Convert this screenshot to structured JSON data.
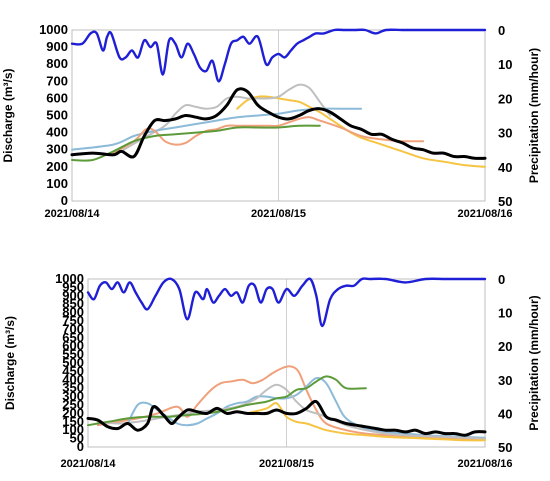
{
  "chart_data": [
    {
      "type": "line",
      "ylabel": "Discharge (m³/s)",
      "y2label": "Precipitation (mm/hour)",
      "ylim": [
        0,
        1000
      ],
      "y2lim": [
        0,
        50
      ],
      "y2_inverted": true,
      "yticks": [
        "0",
        "100",
        "200",
        "300",
        "400",
        "500",
        "600",
        "700",
        "800",
        "900",
        "1000"
      ],
      "y2ticks": [
        "0",
        "10",
        "20",
        "30",
        "40",
        "50"
      ],
      "xlim": [
        0,
        2
      ],
      "xticks": [
        "2021/08/14",
        "2021/08/15",
        "2021/08/16"
      ],
      "grid": "vertical line at 2021/08/15",
      "precipitation": {
        "color": "#1f1fd6",
        "x": [
          0,
          0.05,
          0.09,
          0.12,
          0.15,
          0.17,
          0.19,
          0.23,
          0.26,
          0.29,
          0.32,
          0.35,
          0.38,
          0.41,
          0.44,
          0.47,
          0.5,
          0.53,
          0.56,
          0.59,
          0.62,
          0.65,
          0.68,
          0.71,
          0.74,
          0.77,
          0.8,
          0.83,
          0.86,
          0.9,
          0.94,
          0.97,
          1.0,
          1.03,
          1.06,
          1.09,
          1.12,
          1.15,
          1.18,
          1.22,
          1.27,
          1.32,
          1.37,
          1.42,
          1.47,
          1.52,
          1.6,
          1.7,
          1.8,
          1.9,
          2.0
        ],
        "y": [
          4,
          4,
          1,
          1,
          6,
          2,
          1,
          8,
          8,
          6,
          8,
          3,
          5,
          4,
          13,
          3,
          4,
          8,
          4,
          7,
          11,
          12,
          9,
          15,
          10,
          4,
          3,
          2,
          4,
          2,
          10,
          8,
          7,
          8,
          6,
          4,
          3,
          2,
          1,
          1,
          0,
          0,
          0,
          0,
          1,
          0,
          0,
          0,
          0,
          0,
          0
        ]
      },
      "series": [
        {
          "color": "#000000",
          "x": [
            0,
            0.1,
            0.2,
            0.24,
            0.3,
            0.35,
            0.4,
            0.45,
            0.5,
            0.55,
            0.6,
            0.65,
            0.7,
            0.75,
            0.8,
            0.85,
            0.9,
            0.95,
            1.0,
            1.05,
            1.1,
            1.15,
            1.2,
            1.25,
            1.3,
            1.35,
            1.4,
            1.45,
            1.5,
            1.55,
            1.6,
            1.65,
            1.7,
            1.75,
            1.8,
            1.85,
            1.9,
            1.95,
            2.0
          ],
          "y": [
            270,
            280,
            270,
            290,
            260,
            380,
            470,
            470,
            480,
            500,
            490,
            480,
            500,
            560,
            650,
            640,
            560,
            520,
            490,
            480,
            500,
            530,
            540,
            520,
            480,
            440,
            420,
            390,
            390,
            360,
            340,
            310,
            300,
            280,
            280,
            260,
            260,
            250,
            250
          ]
        },
        {
          "color": "#f6c443",
          "x": [
            0.8,
            0.85,
            0.9,
            0.95,
            1.0,
            1.05,
            1.1,
            1.15,
            1.2,
            1.25,
            1.3,
            1.35,
            1.4,
            1.5,
            1.6,
            1.7,
            1.8,
            1.9,
            2.0
          ],
          "y": [
            540,
            590,
            610,
            610,
            600,
            590,
            580,
            550,
            520,
            480,
            440,
            400,
            370,
            330,
            290,
            250,
            230,
            210,
            200
          ]
        },
        {
          "color": "#bfbfbf",
          "x": [
            0.25,
            0.35,
            0.45,
            0.5,
            0.55,
            0.6,
            0.65,
            0.7,
            0.75,
            0.8,
            0.85,
            0.9,
            0.95,
            1.0,
            1.05,
            1.1,
            1.15,
            1.2,
            1.25
          ],
          "y": [
            300,
            370,
            440,
            510,
            560,
            550,
            540,
            550,
            600,
            610,
            600,
            600,
            600,
            610,
            650,
            680,
            660,
            580,
            500
          ]
        },
        {
          "color": "#8cbad9",
          "x": [
            0,
            0.2,
            0.3,
            0.4,
            0.5,
            0.6,
            0.7,
            0.8,
            0.9,
            1.0,
            1.1,
            1.2,
            1.3,
            1.4
          ],
          "y": [
            300,
            330,
            380,
            410,
            430,
            450,
            470,
            490,
            500,
            510,
            530,
            540,
            540,
            540
          ]
        },
        {
          "color": "#f0a07a",
          "x": [
            0.2,
            0.3,
            0.36,
            0.4,
            0.45,
            0.5,
            0.55,
            0.6,
            0.65,
            0.7,
            0.75,
            0.8,
            0.85,
            0.9,
            0.95,
            1.0,
            1.05,
            1.1,
            1.15,
            1.2,
            1.3,
            1.4,
            1.5,
            1.6,
            1.7
          ],
          "y": [
            280,
            350,
            420,
            410,
            350,
            330,
            340,
            380,
            410,
            420,
            440,
            440,
            440,
            440,
            440,
            440,
            460,
            480,
            490,
            470,
            430,
            380,
            360,
            350,
            350
          ]
        },
        {
          "color": "#5d9b3a",
          "x": [
            0,
            0.1,
            0.2,
            0.3,
            0.4,
            0.5,
            0.6,
            0.7,
            0.8,
            0.9,
            1.0,
            1.1,
            1.2
          ],
          "y": [
            240,
            240,
            290,
            350,
            380,
            390,
            400,
            410,
            430,
            430,
            430,
            440,
            440
          ]
        }
      ]
    },
    {
      "type": "line",
      "ylabel": "Discharge (m³/s)",
      "y2label": "Precipitation (mm/hour)",
      "ylim": [
        0,
        1000
      ],
      "y2lim": [
        0,
        50
      ],
      "y2_inverted": true,
      "yticks": [
        "0",
        "50",
        "100",
        "150",
        "200",
        "250",
        "300",
        "350",
        "400",
        "450",
        "500",
        "550",
        "600",
        "650",
        "700",
        "750",
        "800",
        "850",
        "900",
        "950",
        "1000"
      ],
      "y2ticks": [
        "0",
        "10",
        "20",
        "30",
        "40",
        "50"
      ],
      "xlim": [
        0,
        2
      ],
      "xticks": [
        "2021/08/14",
        "2021/08/15",
        "2021/08/16"
      ],
      "grid": "vertical line at 2021/08/15",
      "precipitation": {
        "color": "#1f1fd6",
        "x": [
          0,
          0.03,
          0.06,
          0.09,
          0.12,
          0.15,
          0.18,
          0.21,
          0.24,
          0.27,
          0.3,
          0.34,
          0.38,
          0.42,
          0.46,
          0.5,
          0.54,
          0.58,
          0.6,
          0.63,
          0.66,
          0.69,
          0.72,
          0.75,
          0.78,
          0.81,
          0.84,
          0.87,
          0.9,
          0.93,
          0.96,
          1.0,
          1.04,
          1.08,
          1.12,
          1.15,
          1.18,
          1.22,
          1.26,
          1.3,
          1.34,
          1.38,
          1.42,
          1.5,
          1.6,
          1.7,
          1.8,
          1.9,
          2.0
        ],
        "y": [
          4,
          6,
          2,
          1,
          3,
          1,
          4,
          1,
          4,
          7,
          9,
          5,
          1,
          0,
          3,
          12,
          4,
          6,
          3,
          7,
          5,
          3,
          5,
          4,
          7,
          2,
          2,
          7,
          3,
          3,
          7,
          3,
          5,
          2,
          0,
          5,
          14,
          6,
          3,
          2,
          2,
          0,
          0,
          0,
          1,
          0,
          0,
          0,
          0
        ]
      },
      "series": [
        {
          "color": "#000000",
          "x": [
            0,
            0.05,
            0.1,
            0.15,
            0.2,
            0.25,
            0.3,
            0.33,
            0.38,
            0.42,
            0.45,
            0.5,
            0.55,
            0.6,
            0.65,
            0.7,
            0.75,
            0.8,
            0.85,
            0.9,
            0.95,
            1.0,
            1.05,
            1.1,
            1.15,
            1.2,
            1.25,
            1.3,
            1.35,
            1.4,
            1.45,
            1.5,
            1.55,
            1.6,
            1.65,
            1.7,
            1.75,
            1.8,
            1.85,
            1.9,
            1.95,
            2.0
          ],
          "y": [
            170,
            160,
            120,
            110,
            140,
            100,
            140,
            240,
            190,
            140,
            170,
            220,
            210,
            200,
            230,
            200,
            210,
            200,
            200,
            200,
            220,
            200,
            200,
            230,
            270,
            180,
            160,
            140,
            130,
            120,
            110,
            100,
            100,
            90,
            100,
            80,
            90,
            80,
            80,
            70,
            90,
            90
          ]
        },
        {
          "color": "#f0a07a",
          "x": [
            0.05,
            0.15,
            0.25,
            0.35,
            0.45,
            0.5,
            0.55,
            0.62,
            0.67,
            0.72,
            0.78,
            0.83,
            0.88,
            0.93,
            0.98,
            1.02,
            1.06,
            1.1,
            1.15,
            1.2,
            1.3,
            1.4,
            1.5,
            1.6,
            1.7,
            1.8,
            1.9,
            2.0
          ],
          "y": [
            130,
            150,
            170,
            200,
            240,
            180,
            250,
            340,
            380,
            390,
            400,
            380,
            400,
            440,
            470,
            480,
            450,
            340,
            220,
            140,
            100,
            80,
            70,
            65,
            60,
            55,
            50,
            50
          ]
        },
        {
          "color": "#8cbad9",
          "x": [
            0.2,
            0.25,
            0.3,
            0.35,
            0.4,
            0.45,
            0.5,
            0.55,
            0.6,
            0.65,
            0.7,
            0.75,
            0.8,
            0.85,
            0.9,
            0.95,
            1.0,
            1.05,
            1.1,
            1.15,
            1.2,
            1.25,
            1.3,
            1.4,
            1.5,
            1.6,
            1.7,
            1.8,
            1.9,
            2.0
          ],
          "y": [
            140,
            250,
            260,
            220,
            180,
            140,
            130,
            140,
            170,
            200,
            240,
            260,
            270,
            300,
            300,
            290,
            290,
            310,
            360,
            410,
            380,
            270,
            170,
            110,
            90,
            80,
            70,
            65,
            60,
            55
          ]
        },
        {
          "color": "#bfbfbf",
          "x": [
            0.05,
            0.15,
            0.25,
            0.35,
            0.45,
            0.55,
            0.65,
            0.75,
            0.8,
            0.85,
            0.9,
            0.95,
            1.0,
            1.05,
            1.1,
            1.15,
            1.2,
            1.3,
            1.4,
            1.5,
            1.6,
            1.7,
            1.8,
            1.9,
            2.0
          ],
          "y": [
            150,
            140,
            150,
            170,
            190,
            210,
            220,
            240,
            260,
            290,
            340,
            370,
            340,
            270,
            220,
            200,
            180,
            130,
            100,
            80,
            70,
            65,
            60,
            55,
            50
          ]
        },
        {
          "color": "#f6c443",
          "x": [
            0.8,
            0.9,
            0.95,
            1.0,
            1.05,
            1.1,
            1.15,
            1.2,
            1.3,
            1.4,
            1.5,
            1.6,
            1.7,
            1.8,
            1.9,
            2.0
          ],
          "y": [
            200,
            230,
            260,
            180,
            150,
            140,
            120,
            100,
            80,
            70,
            60,
            55,
            50,
            45,
            40,
            40
          ]
        },
        {
          "color": "#5d9b3a",
          "x": [
            0,
            0.1,
            0.2,
            0.3,
            0.4,
            0.5,
            0.6,
            0.7,
            0.8,
            0.9,
            0.95,
            1.0,
            1.05,
            1.1,
            1.15,
            1.2,
            1.25,
            1.3,
            1.4
          ],
          "y": [
            130,
            150,
            170,
            180,
            180,
            190,
            200,
            220,
            250,
            270,
            290,
            300,
            340,
            350,
            390,
            420,
            400,
            350,
            350
          ]
        }
      ]
    }
  ]
}
